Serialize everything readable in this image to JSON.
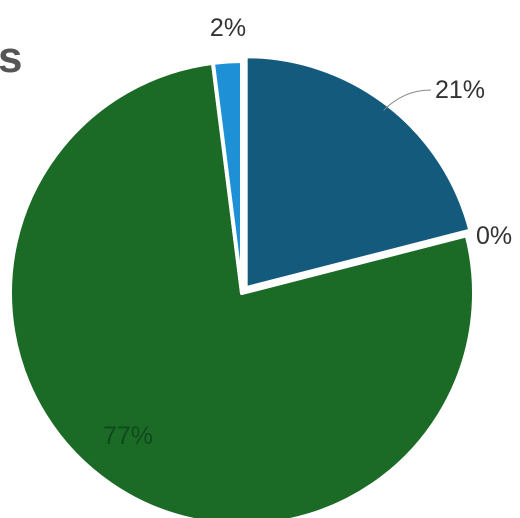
{
  "chart_data": {
    "type": "pie",
    "title_fragment": "s",
    "slices": [
      {
        "value": 21,
        "label": "21%",
        "color": "#145a7d"
      },
      {
        "value": 0,
        "label": "0%",
        "color": "#1f78b4"
      },
      {
        "value": 77,
        "label": "77%",
        "color": "#1b6b27"
      },
      {
        "value": 2,
        "label": "2%",
        "color": "#1e90d6"
      }
    ],
    "start_angle_deg": 0,
    "direction": "clockwise"
  }
}
